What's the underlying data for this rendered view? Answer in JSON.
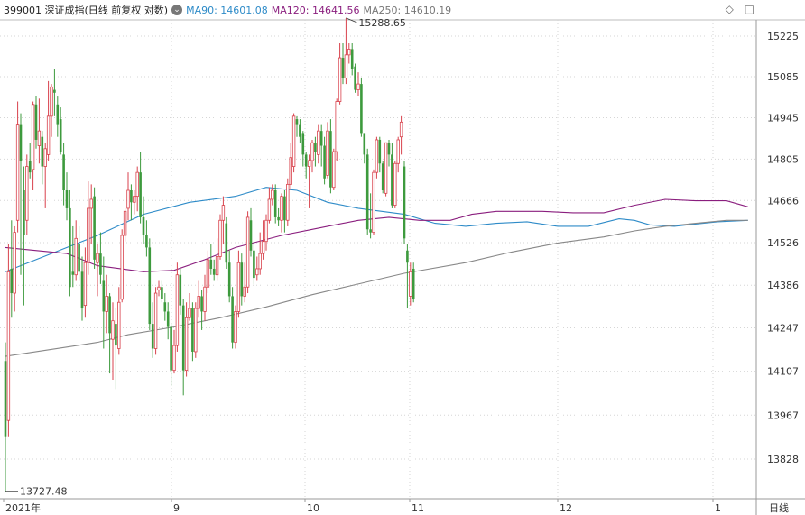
{
  "header": {
    "title": "399001 深证成指(日线 前复权 对数)",
    "ma90": "MA90: 14601.08",
    "ma120": "MA120: 14641.56",
    "ma250": "MA250: 14610.19",
    "toggle_icon": "chevron-down-icon",
    "diamond_icon": "diamond-icon",
    "close_icon": "close-icon"
  },
  "colors": {
    "up": "#d9424c",
    "down": "#3d9a3d",
    "ma90": "#2e8bc8",
    "ma120": "#8a1e7e",
    "ma250": "#888888",
    "grid": "#d6d6d6"
  },
  "chart_data": {
    "type": "candlestick",
    "y_axis_ticks": [
      15225,
      15085,
      14945,
      14805,
      14666,
      14526,
      14386,
      14247,
      14107,
      13967,
      13828
    ],
    "ylim": [
      13700,
      15320
    ],
    "y_scale": "log",
    "x_axis_labels": [
      "2021年",
      "9",
      "10",
      "11",
      "12",
      "1",
      "日线"
    ],
    "annotations": {
      "high": "15288.65",
      "low": "13727.48"
    },
    "candles": [
      [
        14140,
        13900,
        14200,
        13727
      ],
      [
        13950,
        14430,
        14520,
        13900
      ],
      [
        14440,
        14360,
        14600,
        14280
      ],
      [
        14360,
        14560,
        14580,
        14300
      ],
      [
        14600,
        14920,
        15000,
        14560
      ],
      [
        14920,
        14800,
        14960,
        14420
      ],
      [
        14700,
        14550,
        14780,
        14320
      ],
      [
        14600,
        14780,
        14820,
        14550
      ],
      [
        14800,
        14760,
        14860,
        14740
      ],
      [
        14770,
        14990,
        15000,
        14700
      ],
      [
        14990,
        14870,
        15020,
        14840
      ],
      [
        14850,
        14900,
        15010,
        14790
      ],
      [
        14880,
        14780,
        14900,
        14720
      ],
      [
        14780,
        14840,
        14860,
        14640
      ],
      [
        14820,
        14950,
        15070,
        14800
      ],
      [
        14950,
        15050,
        15060,
        14880
      ],
      [
        15040,
        15030,
        15110,
        14950
      ],
      [
        14990,
        14920,
        15020,
        14880
      ],
      [
        14940,
        14830,
        14980,
        14820
      ],
      [
        14820,
        14700,
        14860,
        14650
      ],
      [
        14700,
        14640,
        14760,
        14600
      ],
      [
        14640,
        14380,
        14700,
        14350
      ],
      [
        14430,
        14420,
        14580,
        14380
      ],
      [
        14420,
        14540,
        14600,
        14400
      ],
      [
        14520,
        14430,
        14580,
        14400
      ],
      [
        14430,
        14310,
        14480,
        14270
      ],
      [
        14320,
        14460,
        14510,
        14280
      ],
      [
        14460,
        14640,
        14730,
        14420
      ],
      [
        14640,
        14670,
        14720,
        14520
      ],
      [
        14680,
        14470,
        14710,
        14440
      ],
      [
        14460,
        14490,
        14520,
        14350
      ],
      [
        14490,
        14420,
        14560,
        14390
      ],
      [
        14400,
        14300,
        14480,
        14180
      ],
      [
        14300,
        14350,
        14420,
        14230
      ],
      [
        14350,
        14230,
        14360,
        14100
      ],
      [
        14210,
        14270,
        14330,
        14080
      ],
      [
        14260,
        14190,
        14310,
        14050
      ],
      [
        14180,
        14330,
        14380,
        14160
      ],
      [
        14340,
        14550,
        14570,
        14330
      ],
      [
        14550,
        14630,
        14640,
        14530
      ],
      [
        14640,
        14700,
        14760,
        14600
      ],
      [
        14700,
        14660,
        14720,
        14600
      ],
      [
        14660,
        14680,
        14700,
        14620
      ],
      [
        14680,
        14760,
        14780,
        14630
      ],
      [
        14760,
        14610,
        14830,
        14590
      ],
      [
        14610,
        14550,
        14680,
        14520
      ],
      [
        14550,
        14510,
        14600,
        14480
      ],
      [
        14510,
        14260,
        14540,
        14240
      ],
      [
        14260,
        14180,
        14330,
        14150
      ],
      [
        14180,
        14360,
        14380,
        14160
      ],
      [
        14370,
        14380,
        14400,
        14350
      ],
      [
        14380,
        14340,
        14400,
        14330
      ],
      [
        14330,
        14300,
        14360,
        14270
      ],
      [
        14300,
        14250,
        14330,
        14210
      ],
      [
        14250,
        14110,
        14260,
        14060
      ],
      [
        14110,
        14190,
        14240,
        14100
      ],
      [
        14190,
        14420,
        14460,
        14170
      ],
      [
        14420,
        14320,
        14440,
        14290
      ],
      [
        14320,
        14110,
        14340,
        14030
      ],
      [
        14110,
        14280,
        14330,
        14090
      ],
      [
        14280,
        14310,
        14360,
        14270
      ],
      [
        14310,
        14170,
        14330,
        14140
      ],
      [
        14170,
        14310,
        14330,
        14150
      ],
      [
        14310,
        14350,
        14400,
        14280
      ],
      [
        14350,
        14300,
        14370,
        14240
      ],
      [
        14300,
        14380,
        14420,
        14270
      ],
      [
        14380,
        14470,
        14500,
        14360
      ],
      [
        14470,
        14440,
        14520,
        14420
      ],
      [
        14440,
        14420,
        14470,
        14400
      ],
      [
        14420,
        14480,
        14540,
        14400
      ],
      [
        14480,
        14600,
        14620,
        14470
      ],
      [
        14600,
        14650,
        14680,
        14520
      ],
      [
        14590,
        14460,
        14610,
        14440
      ],
      [
        14460,
        14350,
        14500,
        14330
      ],
      [
        14350,
        14200,
        14380,
        14180
      ],
      [
        14200,
        14300,
        14320,
        14180
      ],
      [
        14300,
        14460,
        14500,
        14280
      ],
      [
        14460,
        14350,
        14490,
        14320
      ],
      [
        14350,
        14380,
        14460,
        14330
      ],
      [
        14380,
        14610,
        14630,
        14360
      ],
      [
        14600,
        14500,
        14640,
        14480
      ],
      [
        14500,
        14410,
        14530,
        14390
      ],
      [
        14420,
        14440,
        14480,
        14400
      ],
      [
        14440,
        14490,
        14560,
        14420
      ],
      [
        14490,
        14530,
        14600,
        14470
      ],
      [
        14530,
        14600,
        14620,
        14500
      ],
      [
        14600,
        14670,
        14710,
        14590
      ],
      [
        14670,
        14700,
        14720,
        14650
      ],
      [
        14700,
        14610,
        14720,
        14590
      ],
      [
        14610,
        14600,
        14640,
        14580
      ],
      [
        14600,
        14680,
        14690,
        14560
      ],
      [
        14680,
        14600,
        14700,
        14560
      ],
      [
        14600,
        14720,
        14740,
        14580
      ],
      [
        14720,
        14810,
        14860,
        14700
      ],
      [
        14780,
        14950,
        14960,
        14760
      ],
      [
        14940,
        14920,
        14950,
        14880
      ],
      [
        14920,
        14880,
        14940,
        14860
      ],
      [
        14890,
        14820,
        14900,
        14780
      ],
      [
        14820,
        14780,
        14830,
        14740
      ],
      [
        14780,
        14800,
        14820,
        14640
      ],
      [
        14800,
        14860,
        14870,
        14760
      ],
      [
        14860,
        14830,
        14880,
        14780
      ],
      [
        14820,
        14900,
        14920,
        14790
      ],
      [
        14900,
        14850,
        14920,
        14780
      ],
      [
        14850,
        14740,
        14880,
        14720
      ],
      [
        14750,
        14900,
        14930,
        14740
      ],
      [
        14900,
        14710,
        14940,
        14690
      ],
      [
        14710,
        14830,
        14840,
        14700
      ],
      [
        14830,
        15000,
        15010,
        14800
      ],
      [
        15000,
        15150,
        15200,
        14990
      ],
      [
        15150,
        15080,
        15200,
        15060
      ],
      [
        15080,
        15160,
        15288,
        15060
      ],
      [
        15160,
        15180,
        15200,
        15130
      ],
      [
        15180,
        15110,
        15200,
        15090
      ],
      [
        15120,
        15040,
        15130,
        15030
      ],
      [
        15040,
        15060,
        15100,
        15020
      ],
      [
        15060,
        14890,
        15080,
        14880
      ],
      [
        14890,
        14820,
        14890,
        14790
      ],
      [
        14820,
        14570,
        14840,
        14550
      ],
      [
        14570,
        14560,
        14690,
        14540
      ],
      [
        14560,
        14760,
        14770,
        14550
      ],
      [
        14760,
        14870,
        14880,
        14740
      ],
      [
        14870,
        14790,
        14880,
        14760
      ],
      [
        14790,
        14700,
        14800,
        14690
      ],
      [
        14690,
        14860,
        14860,
        14680
      ],
      [
        14860,
        14820,
        14870,
        14780
      ],
      [
        14820,
        14650,
        14860,
        14640
      ],
      [
        14650,
        14790,
        14800,
        14640
      ],
      [
        14790,
        14870,
        14880,
        14760
      ],
      [
        14880,
        14930,
        14950,
        14820
      ],
      [
        14780,
        14540,
        14800,
        14520
      ],
      [
        14500,
        14460,
        14520,
        14310
      ],
      [
        14350,
        14430,
        14460,
        14320
      ],
      [
        14440,
        14340,
        14460,
        14330
      ]
    ],
    "ma_series": [
      {
        "name": "MA90",
        "color": "#2e8bc8",
        "points": [
          [
            0,
            14430
          ],
          [
            30,
            14550
          ],
          [
            45,
            14620
          ],
          [
            60,
            14660
          ],
          [
            75,
            14680
          ],
          [
            85,
            14710
          ],
          [
            95,
            14700
          ],
          [
            105,
            14660
          ],
          [
            115,
            14640
          ],
          [
            130,
            14620
          ],
          [
            140,
            14590
          ],
          [
            150,
            14580
          ],
          [
            160,
            14590
          ],
          [
            170,
            14595
          ],
          [
            180,
            14580
          ],
          [
            190,
            14580
          ],
          [
            200,
            14605
          ],
          [
            205,
            14600
          ],
          [
            210,
            14585
          ],
          [
            218,
            14580
          ],
          [
            232,
            14595
          ],
          [
            242,
            14600
          ]
        ]
      },
      {
        "name": "MA120",
        "color": "#8a1e7e",
        "points": [
          [
            0,
            14510
          ],
          [
            20,
            14490
          ],
          [
            30,
            14450
          ],
          [
            45,
            14430
          ],
          [
            55,
            14435
          ],
          [
            65,
            14470
          ],
          [
            75,
            14510
          ],
          [
            90,
            14550
          ],
          [
            100,
            14570
          ],
          [
            115,
            14600
          ],
          [
            125,
            14610
          ],
          [
            135,
            14600
          ],
          [
            145,
            14600
          ],
          [
            152,
            14620
          ],
          [
            160,
            14630
          ],
          [
            175,
            14630
          ],
          [
            185,
            14625
          ],
          [
            195,
            14625
          ],
          [
            205,
            14650
          ],
          [
            215,
            14670
          ],
          [
            225,
            14665
          ],
          [
            235,
            14665
          ],
          [
            242,
            14645
          ]
        ]
      },
      {
        "name": "MA250",
        "color": "#888888",
        "points": [
          [
            0,
            14155
          ],
          [
            10,
            14170
          ],
          [
            20,
            14185
          ],
          [
            30,
            14200
          ],
          [
            40,
            14225
          ],
          [
            55,
            14250
          ],
          [
            70,
            14280
          ],
          [
            85,
            14315
          ],
          [
            100,
            14355
          ],
          [
            115,
            14390
          ],
          [
            130,
            14425
          ],
          [
            150,
            14460
          ],
          [
            165,
            14495
          ],
          [
            180,
            14525
          ],
          [
            195,
            14545
          ],
          [
            205,
            14565
          ],
          [
            215,
            14580
          ],
          [
            225,
            14590
          ],
          [
            235,
            14600
          ],
          [
            242,
            14600
          ]
        ]
      }
    ]
  }
}
